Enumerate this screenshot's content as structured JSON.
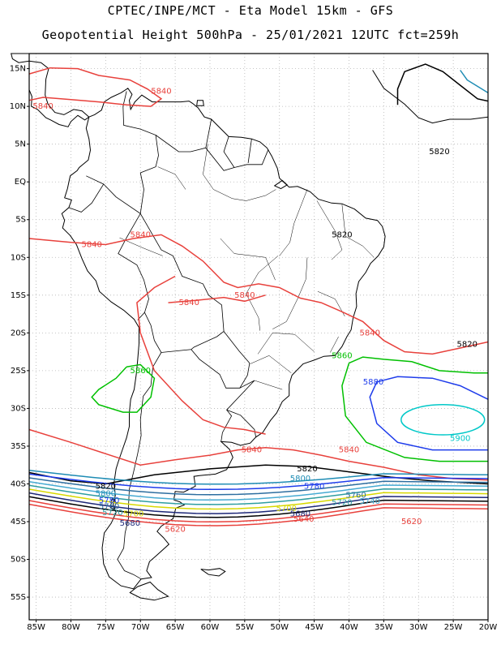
{
  "title_line1": "CPTEC/INPE/MCT -  Eta Model 15km - GFS",
  "title_line2": "Geopotential Height 500hPa - 25/01/2021 12UTC fct=259h",
  "lat_labels": [
    "15N",
    "10N",
    "5N",
    "EQ",
    "5S",
    "10S",
    "15S",
    "20S",
    "25S",
    "30S",
    "35S",
    "40S",
    "45S",
    "50S",
    "55S"
  ],
  "lon_labels": [
    "85W",
    "80W",
    "75W",
    "70W",
    "65W",
    "60W",
    "55W",
    "50W",
    "45W",
    "40W",
    "35W",
    "30W",
    "25W",
    "20W"
  ],
  "contour_labels": [
    {
      "text": "5840",
      "color": "#e8413c",
      "lon": -67,
      "lat": 12.0
    },
    {
      "text": "5840",
      "color": "#e8413c",
      "lon": -84,
      "lat": 10.0
    },
    {
      "text": "5820",
      "color": "#000000",
      "lon": -27,
      "lat": 4.0
    },
    {
      "text": "5840",
      "color": "#e8413c",
      "lon": -77,
      "lat": -8.3
    },
    {
      "text": "5840",
      "color": "#e8413c",
      "lon": -70,
      "lat": -7.0
    },
    {
      "text": "5820",
      "color": "#000000",
      "lon": -41,
      "lat": -7.0
    },
    {
      "text": "5840",
      "color": "#e8413c",
      "lon": -63,
      "lat": -16.0
    },
    {
      "text": "5840",
      "color": "#e8413c",
      "lon": -55,
      "lat": -15.0
    },
    {
      "text": "5840",
      "color": "#e8413c",
      "lon": -37,
      "lat": -20.0
    },
    {
      "text": "5820",
      "color": "#000000",
      "lon": -23,
      "lat": -21.5
    },
    {
      "text": "5860",
      "color": "#00c000",
      "lon": -41,
      "lat": -23.0
    },
    {
      "text": "5860",
      "color": "#00c000",
      "lon": -70,
      "lat": -25.0
    },
    {
      "text": "5880",
      "color": "#1e3ceb",
      "lon": -36.5,
      "lat": -26.5
    },
    {
      "text": "5900",
      "color": "#00c8c8",
      "lon": -24,
      "lat": -34.0
    },
    {
      "text": "5840",
      "color": "#e8413c",
      "lon": -54,
      "lat": -35.5
    },
    {
      "text": "5840",
      "color": "#e8413c",
      "lon": -40,
      "lat": -35.5
    },
    {
      "text": "5820",
      "color": "#000000",
      "lon": -46,
      "lat": -38.0
    },
    {
      "text": "5800",
      "color": "#1e8cb4",
      "lon": -47,
      "lat": -39.3
    },
    {
      "text": "5780",
      "color": "#1e3ceb",
      "lon": -45,
      "lat": -40.3
    },
    {
      "text": "5760",
      "color": "#2d6ea0",
      "lon": -39,
      "lat": -41.5
    },
    {
      "text": "5740",
      "color": "#46aad2",
      "lon": -37,
      "lat": -42.3
    },
    {
      "text": "5720",
      "color": "#2f9ea0",
      "lon": -41,
      "lat": -42.5
    },
    {
      "text": "5700",
      "color": "#d8d800",
      "lon": -49,
      "lat": -43.3
    },
    {
      "text": "5680",
      "color": "#1e2878",
      "lon": -47,
      "lat": -44.0
    },
    {
      "text": "5640",
      "color": "#e8413c",
      "lon": -46.5,
      "lat": -44.7
    },
    {
      "text": "5620",
      "color": "#e8413c",
      "lon": -31,
      "lat": -45.0
    },
    {
      "text": "5820",
      "color": "#000000",
      "lon": -75,
      "lat": -40.3
    },
    {
      "text": "5800",
      "color": "#1e8cb4",
      "lon": -75,
      "lat": -41.3
    },
    {
      "text": "5780",
      "color": "#1e3ceb",
      "lon": -74.5,
      "lat": -42.2
    },
    {
      "text": "5760",
      "color": "#2d6ea0",
      "lon": -74.5,
      "lat": -43.0
    },
    {
      "text": "5720",
      "color": "#2f9ea0",
      "lon": -74,
      "lat": -43.8
    },
    {
      "text": "5700",
      "color": "#d8d800",
      "lon": -71,
      "lat": -44.0
    },
    {
      "text": "5680",
      "color": "#1e2878",
      "lon": -71.5,
      "lat": -45.2
    },
    {
      "text": "5620",
      "color": "#e8413c",
      "lon": -65,
      "lat": -46.0
    }
  ]
}
